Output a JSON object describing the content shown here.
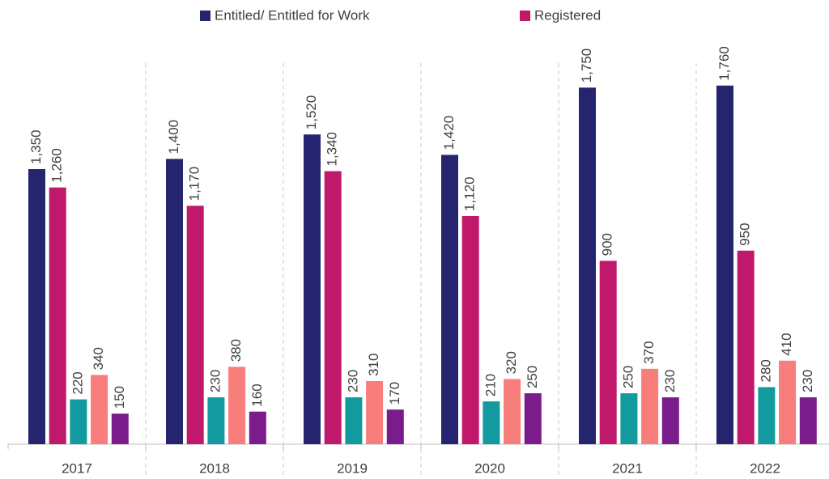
{
  "chart_data": {
    "type": "bar",
    "categories": [
      "2017",
      "2018",
      "2019",
      "2020",
      "2021",
      "2022"
    ],
    "ylim": [
      0,
      2180
    ],
    "series": [
      {
        "name": "Entitled/ Entitled for Work",
        "color": "#24246f",
        "values": [
          1350,
          1400,
          1520,
          1420,
          1750,
          1760
        ],
        "value_labels": [
          "1,350",
          "1,400",
          "1,520",
          "1,420",
          "1,750",
          "1,760"
        ]
      },
      {
        "name": "Registered",
        "color": "#c0196c",
        "values": [
          1260,
          1170,
          1340,
          1120,
          900,
          950
        ],
        "value_labels": [
          "1,260",
          "1,170",
          "1,340",
          "1,120",
          "900",
          "950"
        ]
      },
      {
        "color": "#129a9f",
        "values": [
          220,
          230,
          230,
          210,
          250,
          280
        ]
      },
      {
        "color": "#f87e7b",
        "values": [
          340,
          380,
          310,
          320,
          370,
          410
        ]
      },
      {
        "color": "#7a1c8b",
        "values": [
          150,
          160,
          170,
          250,
          230,
          230
        ]
      }
    ]
  }
}
